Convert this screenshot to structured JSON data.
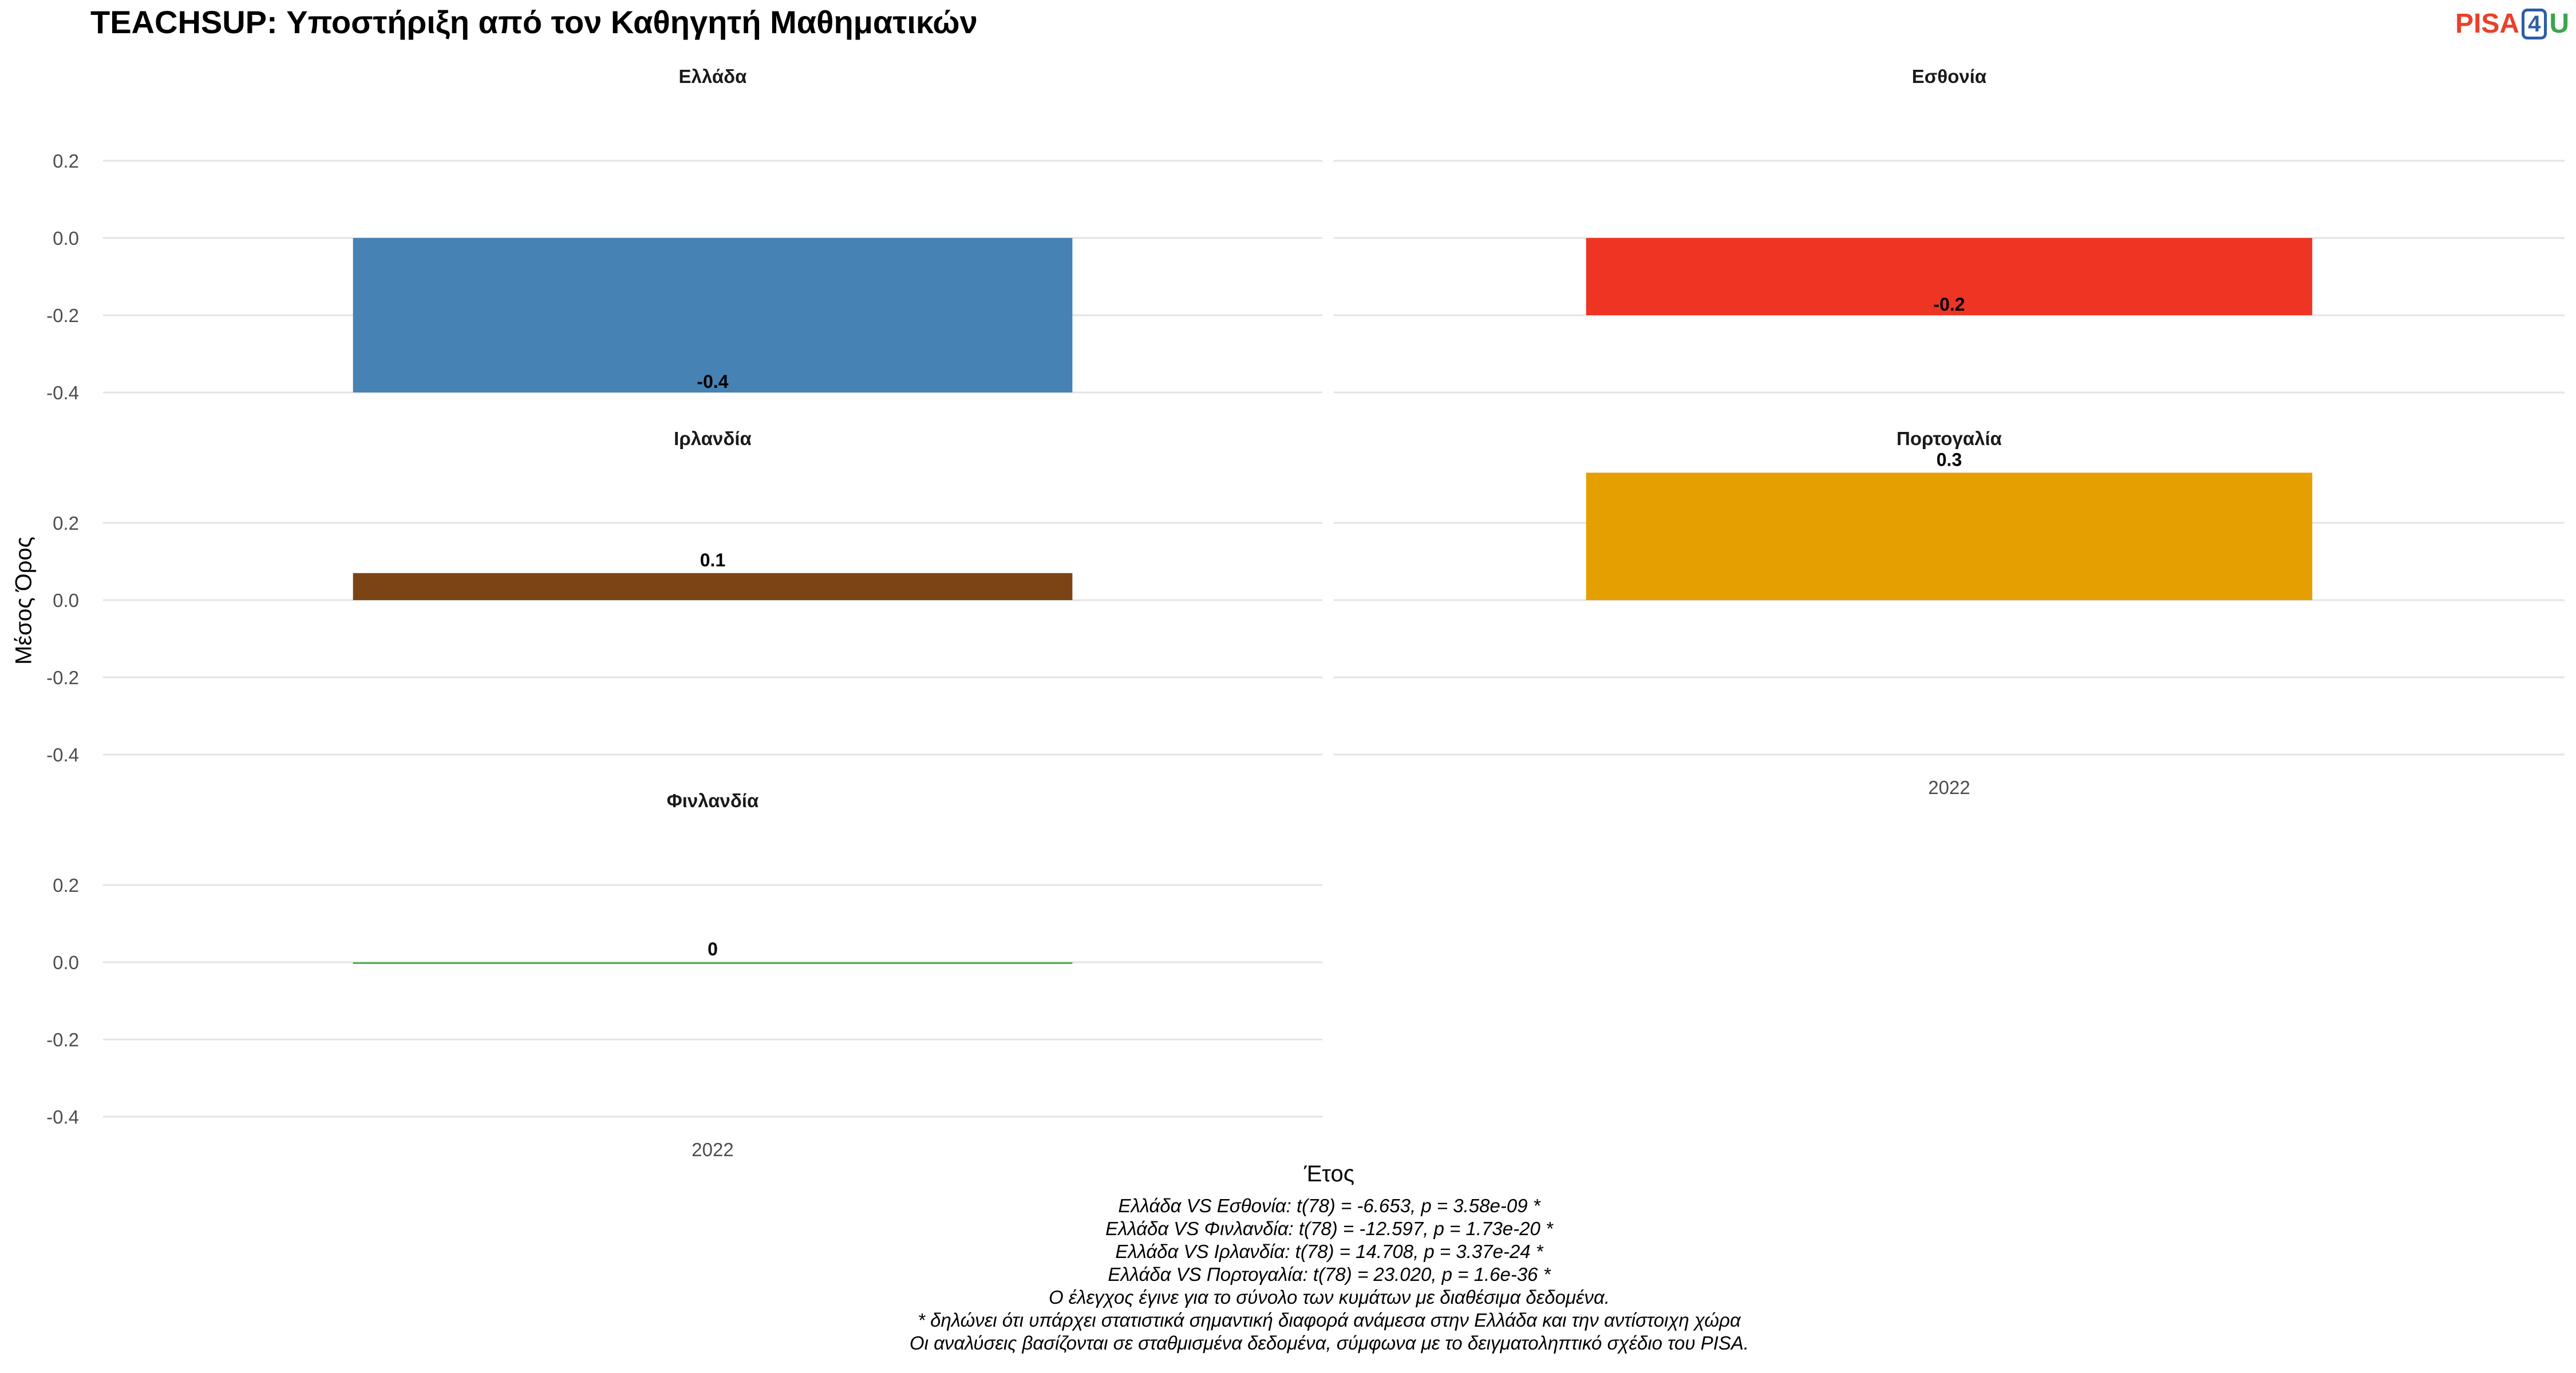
{
  "title": "TEACHSUP: Υποστήριξη από τον Καθηγητή Μαθηματικών",
  "logo": {
    "part1": "PISA",
    "part2": "4",
    "part3": "U"
  },
  "chart_data": {
    "type": "bar",
    "ylabel": "Μέσος Όρος",
    "xlabel": "Έτος",
    "ylim": [
      -0.4,
      0.3
    ],
    "yticks": [
      -0.4,
      -0.2,
      0.0,
      0.2
    ],
    "ytick_labels": [
      "-0.4",
      "-0.2",
      "0.0",
      "0.2"
    ],
    "categories": [
      "2022"
    ],
    "grid": true,
    "facets": [
      {
        "name": "Ελλάδα",
        "year": "2022",
        "value": -0.4,
        "label": "-0.4",
        "color": "#4682b4"
      },
      {
        "name": "Εσθονία",
        "year": "2022",
        "value": -0.2,
        "label": "-0.2",
        "color": "#ee3524"
      },
      {
        "name": "Ιρλανδία",
        "year": "2022",
        "value": 0.07,
        "label": "0.1",
        "color": "#7b4415"
      },
      {
        "name": "Πορτογαλία",
        "year": "2022",
        "value": 0.33,
        "label": "0.3",
        "color": "#e69f00"
      },
      {
        "name": "Φινλανδία",
        "year": "2022",
        "value": 0.0,
        "label": "0",
        "color": "#4daf4a"
      }
    ]
  },
  "caption": [
    "Ελλάδα VS Εσθονία: t(78) = -6.653, p = 3.58e-09 *",
    "Ελλάδα VS Φινλανδία: t(78) = -12.597, p = 1.73e-20 *",
    "Ελλάδα VS Ιρλανδία: t(78) = 14.708, p = 3.37e-24 *",
    "Ελλάδα VS Πορτογαλία: t(78) = 23.020, p = 1.6e-36 *",
    "Ο έλεγχος έγινε για το σύνολο των κυμάτων με διαθέσιμα δεδομένα.",
    "* δηλώνει ότι υπάρχει στατιστικά σημαντική διαφορά ανάμεσα στην Ελλάδα και την αντίστοιχη χώρα",
    "Οι αναλύσεις βασίζονται σε σταθμισμένα δεδομένα, σύμφωνα με το δειγματοληπτικό σχέδιο του PISA."
  ]
}
